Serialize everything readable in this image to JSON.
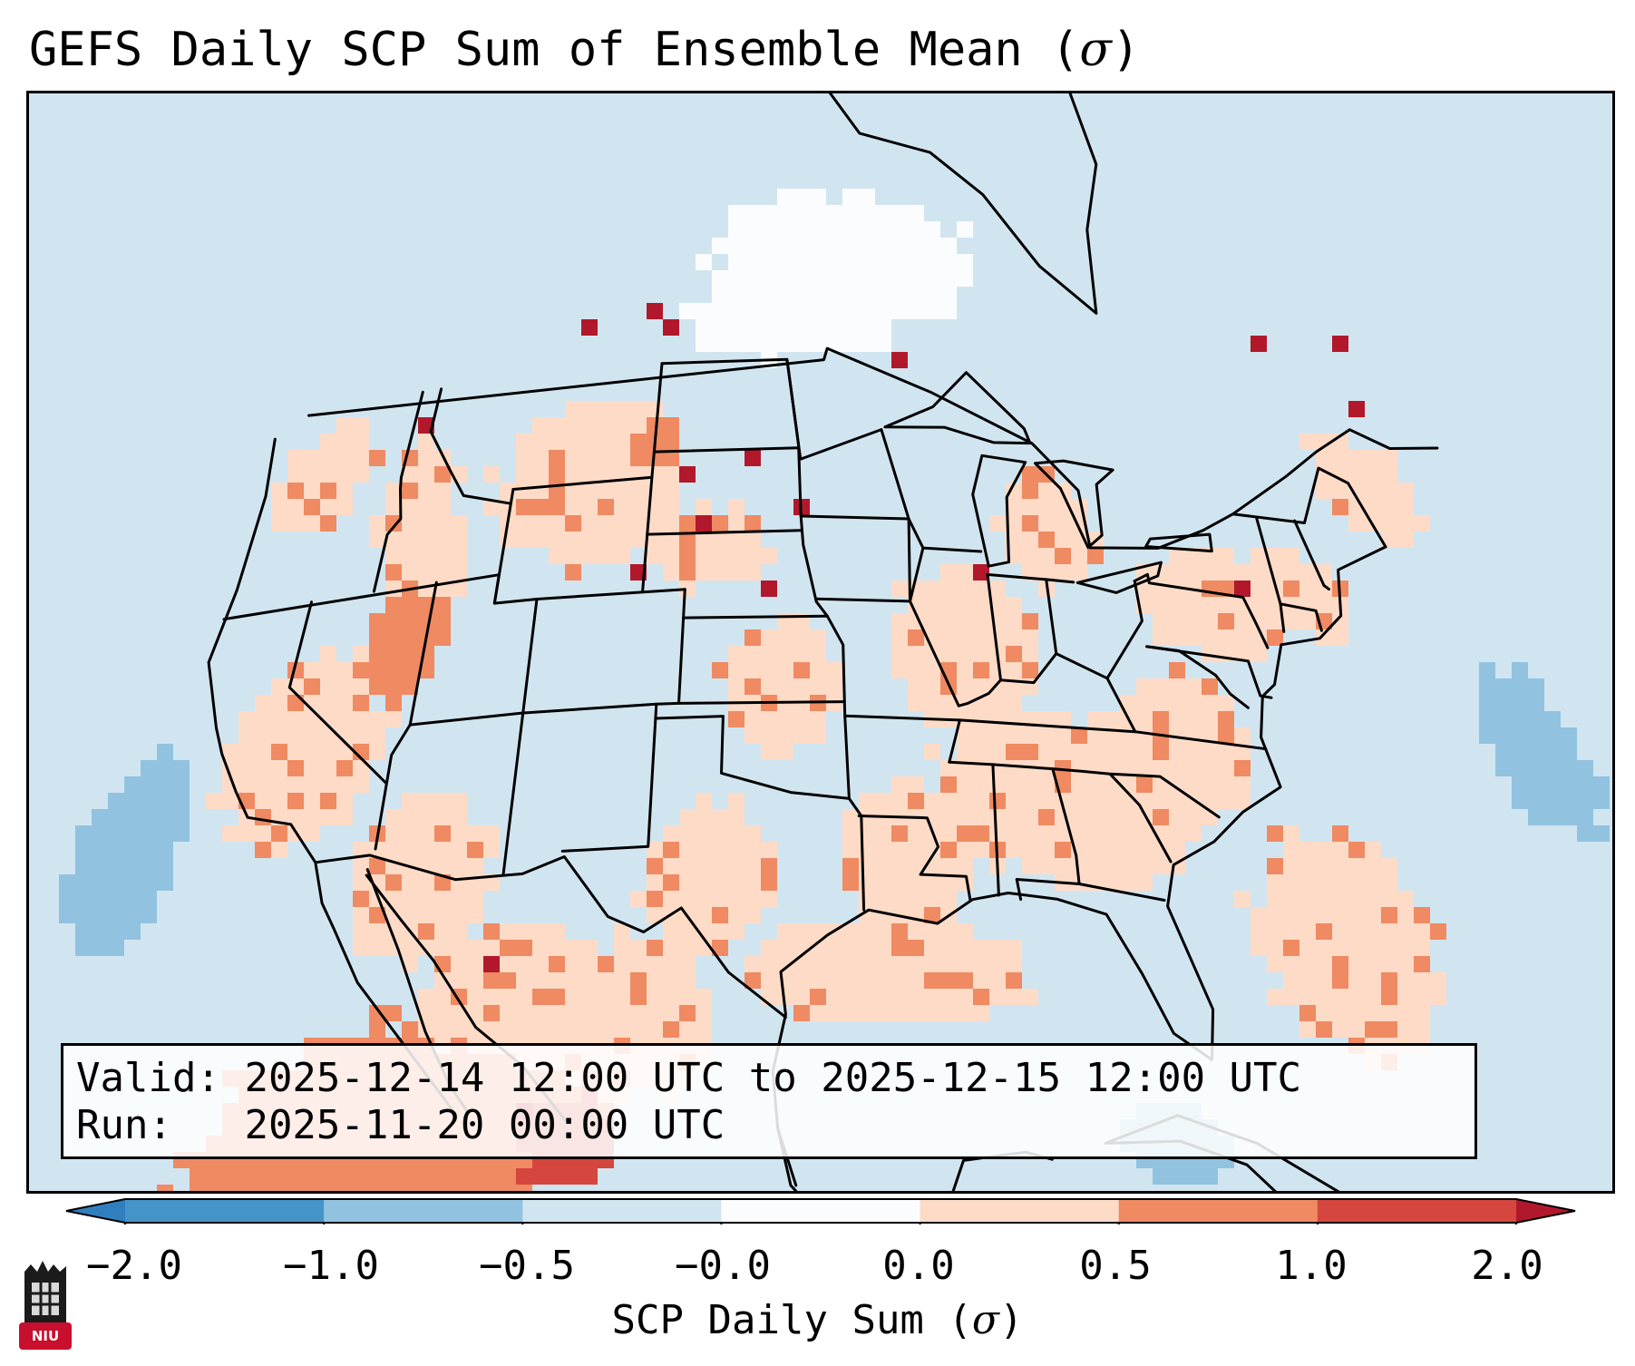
{
  "header": {
    "title": "GEFS Daily SCP Sum of Ensemble Mean (",
    "title_symbol": "σ",
    "title_close": ")"
  },
  "valid_info": {
    "valid_label": "Valid:",
    "valid_value": "2025-12-14 12:00 UTC to 2025-12-15 12:00 UTC",
    "run_label": "Run:",
    "run_value": "2025-11-20 00:00 UTC"
  },
  "colorbar": {
    "label_text": "SCP Daily Sum (",
    "label_symbol": "σ",
    "label_close": ")",
    "ticks": [
      "−2.0",
      "−1.0",
      "−0.5",
      "−0.0",
      "0.0",
      "0.5",
      "1.0",
      "2.0"
    ],
    "bin_colors": [
      "#2f7fbf",
      "#4594c9",
      "#91c3e0",
      "#d1e5f0",
      "#fbfcfd",
      "#fddbc7",
      "#ef8a62",
      "#d5463e",
      "#b2182b"
    ],
    "extend": "both"
  },
  "logo": {
    "text": "NIU",
    "color": "#c8102e"
  },
  "map": {
    "projection": "Lambert conformal, CONUS",
    "background_category": 3,
    "ocean_color": "#d1e5f0",
    "border_color": "#000000",
    "anomaly_regions": [
      {
        "lon": -118.5,
        "lat": 36.5,
        "rlon": 3.5,
        "rlat": 3.5,
        "category": 5
      },
      {
        "lon": -121.0,
        "lat": 46.5,
        "rlon": 2.5,
        "rlat": 2.0,
        "category": 5
      },
      {
        "lon": -116.0,
        "lat": 45.0,
        "rlon": 2.0,
        "rlat": 2.0,
        "category": 5
      },
      {
        "lon": -114.5,
        "lat": 42.5,
        "rlon": 2.0,
        "rlat": 2.0,
        "category": 5
      },
      {
        "lon": -112.5,
        "lat": 31.5,
        "rlon": 3.0,
        "rlat": 3.0,
        "category": 5
      },
      {
        "lon": -108.0,
        "lat": 26.5,
        "rlon": 4.0,
        "rlat": 3.0,
        "category": 5
      },
      {
        "lon": -103.0,
        "lat": 26.0,
        "rlon": 3.0,
        "rlat": 3.0,
        "category": 5
      },
      {
        "lon": -112.0,
        "lat": 22.5,
        "rlon": 8.0,
        "rlat": 4.0,
        "category": 6
      },
      {
        "lon": -106.0,
        "lat": 22.0,
        "rlon": 2.0,
        "rlat": 2.0,
        "category": 7
      },
      {
        "lon": -107.0,
        "lat": 45.0,
        "rlon": 5.0,
        "rlat": 3.0,
        "category": 5
      },
      {
        "lon": -101.0,
        "lat": 42.5,
        "rlon": 3.0,
        "rlat": 1.5,
        "category": 5
      },
      {
        "lon": -97.5,
        "lat": 37.5,
        "rlon": 2.5,
        "rlat": 2.5,
        "category": 5
      },
      {
        "lon": -100.5,
        "lat": 31.0,
        "rlon": 3.0,
        "rlat": 2.5,
        "category": 5
      },
      {
        "lon": -92.0,
        "lat": 31.5,
        "rlon": 3.0,
        "rlat": 2.5,
        "category": 5
      },
      {
        "lon": -89.0,
        "lat": 39.0,
        "rlon": 3.5,
        "rlat": 3.0,
        "category": 5
      },
      {
        "lon": -85.0,
        "lat": 34.0,
        "rlon": 6.0,
        "rlat": 3.0,
        "category": 5
      },
      {
        "lon": -79.5,
        "lat": 36.5,
        "rlon": 3.0,
        "rlat": 2.5,
        "category": 5
      },
      {
        "lon": -77.0,
        "lat": 41.5,
        "rlon": 3.5,
        "rlat": 2.0,
        "category": 5
      },
      {
        "lon": -84.5,
        "lat": 43.5,
        "rlon": 2.5,
        "rlat": 2.0,
        "category": 5
      },
      {
        "lon": -72.5,
        "lat": 42.5,
        "rlon": 2.5,
        "rlat": 1.5,
        "category": 5
      },
      {
        "lon": -67.0,
        "lat": 47.0,
        "rlon": 3.0,
        "rlat": 2.0,
        "category": 5
      },
      {
        "lon": -74.0,
        "lat": 30.0,
        "rlon": 4.0,
        "rlat": 4.0,
        "category": 5
      },
      {
        "lon": -93.0,
        "lat": 27.5,
        "rlon": 6.0,
        "rlat": 1.8,
        "category": 5
      },
      {
        "lon": -115.0,
        "lat": 40.0,
        "rlon": 2.0,
        "rlat": 2.0,
        "category": 6
      },
      {
        "lon": -104.0,
        "lat": 46.0,
        "rlon": 1.5,
        "rlat": 1.0,
        "category": 6
      },
      {
        "lon": -89.5,
        "lat": 38.5,
        "rlon": 1.2,
        "rlat": 1.2,
        "category": 6
      },
      {
        "lon": -76.5,
        "lat": 42.0,
        "rlon": 1.0,
        "rlat": 1.0,
        "category": 6
      },
      {
        "lon": -117.0,
        "lat": 19.0,
        "rlon": 6.0,
        "rlat": 3.0,
        "category": 6
      },
      {
        "lon": -125.5,
        "lat": 34.0,
        "rlon": 2.5,
        "rlat": 3.5,
        "category": 2
      },
      {
        "lon": -63.0,
        "lat": 38.5,
        "rlon": 2.5,
        "rlat": 3.0,
        "category": 2
      },
      {
        "lon": -82.0,
        "lat": 22.0,
        "rlon": 2.0,
        "rlat": 1.5,
        "category": 2
      },
      {
        "lon": -97.0,
        "lat": 50.5,
        "rlon": 6.0,
        "rlat": 1.5,
        "category": 4
      },
      {
        "lon": -94.0,
        "lat": 52.5,
        "rlon": 8.0,
        "rlat": 2.5,
        "category": 4
      }
    ],
    "scattered_cells": [
      {
        "lon": -104.5,
        "lat": 51.0,
        "category": 8
      },
      {
        "lon": -104.0,
        "lat": 50.0,
        "category": 8
      },
      {
        "lon": -108.0,
        "lat": 50.5,
        "category": 8
      },
      {
        "lon": -99.0,
        "lat": 45.5,
        "category": 8
      },
      {
        "lon": -102.5,
        "lat": 45.0,
        "category": 8
      },
      {
        "lon": -104.5,
        "lat": 41.5,
        "category": 8
      },
      {
        "lon": -101.0,
        "lat": 43.5,
        "category": 8
      },
      {
        "lon": -88.0,
        "lat": 41.5,
        "category": 8
      },
      {
        "lon": -91.5,
        "lat": 49.0,
        "category": 8
      },
      {
        "lon": -70.0,
        "lat": 51.5,
        "category": 8
      },
      {
        "lon": -66.0,
        "lat": 50.0,
        "category": 8
      },
      {
        "lon": -64.5,
        "lat": 52.5,
        "category": 8
      },
      {
        "lon": -116.5,
        "lat": 47.5,
        "category": 8
      },
      {
        "lon": -109.0,
        "lat": 28.0,
        "category": 8
      },
      {
        "lon": -107.5,
        "lat": 23.0,
        "category": 8
      },
      {
        "lon": -75.5,
        "lat": 42.5,
        "category": 8
      },
      {
        "lon": -96.5,
        "lat": 44.0,
        "category": 8
      },
      {
        "lon": -98.0,
        "lat": 41.0,
        "category": 8
      }
    ]
  }
}
